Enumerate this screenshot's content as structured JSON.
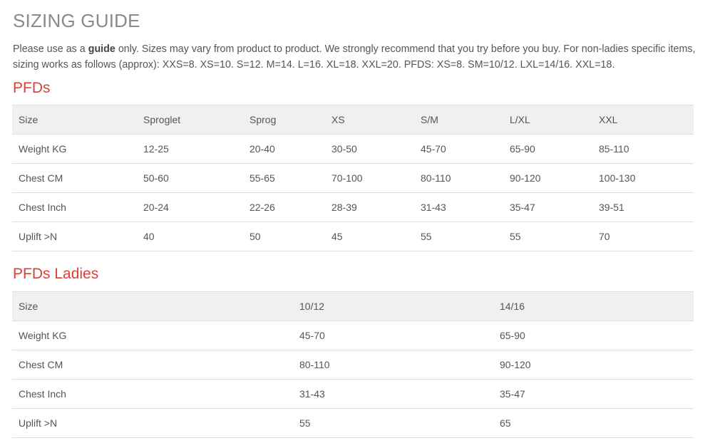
{
  "title": "SIZING GUIDE",
  "intro": {
    "before": "Please use as a ",
    "bold": "guide",
    "after": " only. Sizes may vary from product to product. We strongly recommend that you try before you buy. For non-ladies specific items, sizing works as follows (approx): XXS=8. XS=10. S=12. M=14. L=16. XL=18. XXL=20. PFDS: XS=8. SM=10/12. LXL=14/16. XXL=18."
  },
  "colors": {
    "heading": "#d9403a",
    "header_bg": "#f0f0f0"
  },
  "pfds": {
    "heading": "PFDs",
    "rows": [
      [
        "Size",
        "Sproglet",
        "Sprog",
        "XS",
        "S/M",
        "L/XL",
        "XXL"
      ],
      [
        "Weight KG",
        "12-25",
        "20-40",
        "30-50",
        "45-70",
        "65-90",
        "85-110"
      ],
      [
        "Chest CM",
        "50-60",
        "55-65",
        "70-100",
        "80-110",
        "90-120",
        "100-130"
      ],
      [
        "Chest Inch",
        "20-24",
        "22-26",
        "28-39",
        "31-43",
        "35-47",
        "39-51"
      ],
      [
        "Uplift >N",
        "40",
        "50",
        "45",
        "55",
        "55",
        "70"
      ]
    ]
  },
  "ladies": {
    "heading": "PFDs Ladies",
    "rows": [
      [
        "Size",
        "10/12",
        "14/16"
      ],
      [
        "Weight KG",
        "45-70",
        "65-90"
      ],
      [
        "Chest CM",
        "80-110",
        "90-120"
      ],
      [
        "Chest Inch",
        "31-43",
        "35-47"
      ],
      [
        "Uplift >N",
        "55",
        "65"
      ]
    ]
  }
}
